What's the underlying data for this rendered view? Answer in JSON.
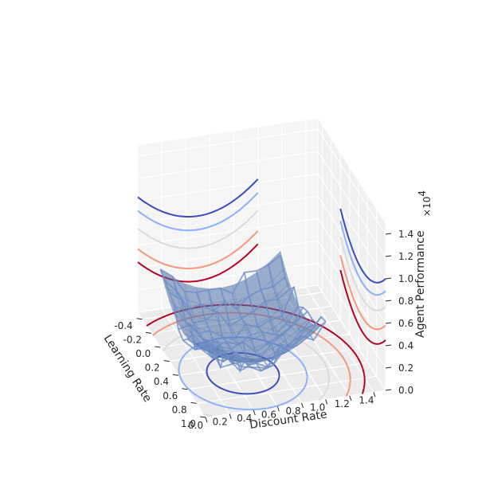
{
  "chart_data": {
    "type": "surface3d",
    "title": "",
    "axes": {
      "x": {
        "label": "Discount Rate",
        "ticks": [
          "0.0",
          "0.2",
          "0.4",
          "0.6",
          "0.8",
          "1.0",
          "1.2",
          "1.4"
        ],
        "range": [
          0.0,
          1.5
        ]
      },
      "y": {
        "label": "Learning Rate",
        "ticks": [
          "-0.4",
          "-0.2",
          "0.0",
          "0.2",
          "0.4",
          "0.6",
          "0.8",
          "1.0"
        ],
        "range": [
          -0.5,
          1.0
        ]
      },
      "z": {
        "label": "Agent Performance",
        "ticks": [
          "0.0",
          "0.2",
          "0.4",
          "0.6",
          "0.8",
          "1.0",
          "1.2",
          "1.4"
        ],
        "range": [
          0.0,
          1.5
        ],
        "multiplier": "×10",
        "multiplier_exp": "4"
      }
    },
    "grid": true,
    "surface": {
      "function": "z = 10000*((x-0.5)^2 + (y-0.5)^2) + 2000",
      "x": [
        0.0,
        0.1,
        0.2,
        0.3,
        0.4,
        0.5,
        0.6,
        0.7,
        0.8,
        0.9,
        1.0
      ],
      "y": [
        0.0,
        0.1,
        0.2,
        0.3,
        0.4,
        0.5,
        0.6,
        0.7,
        0.8,
        0.9,
        1.0
      ],
      "color": "#4c6fa8",
      "wireframe_color": "#6f8fc7",
      "noise_amplitude": 900
    },
    "contours": {
      "levels": [
        2800,
        4500,
        6500,
        9000,
        11000
      ],
      "colors": [
        "#3b4cc0",
        "#8db0fe",
        "#dddcdc",
        "#f4987a",
        "#b40426"
      ]
    }
  }
}
